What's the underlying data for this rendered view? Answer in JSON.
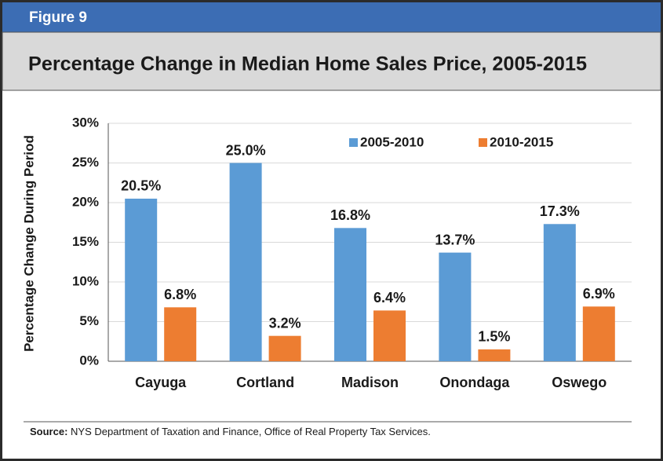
{
  "figure_label": "Figure 9",
  "chart_data": {
    "type": "bar",
    "title": "Percentage Change in Median Home Sales Price, 2005-2015",
    "y_label": "Percentage Change During Period",
    "categories": [
      "Cayuga",
      "Cortland",
      "Madison",
      "Onondaga",
      "Oswego"
    ],
    "series": [
      {
        "name": "2005-2010",
        "color": "#5b9bd5",
        "values": [
          20.5,
          25.0,
          16.8,
          13.7,
          17.3
        ],
        "value_labels": [
          "20.5%",
          "25.0%",
          "16.8%",
          "13.7%",
          "17.3%"
        ]
      },
      {
        "name": "2010-2015",
        "color": "#ed7d31",
        "values": [
          6.8,
          3.2,
          6.4,
          1.5,
          6.9
        ],
        "value_labels": [
          "6.8%",
          "3.2%",
          "6.4%",
          "1.5%",
          "6.9%"
        ]
      }
    ],
    "ylim": [
      0,
      30
    ],
    "yticks": [
      {
        "value": 0,
        "label": "0%"
      },
      {
        "value": 5,
        "label": "5%"
      },
      {
        "value": 10,
        "label": "10%"
      },
      {
        "value": 15,
        "label": "15%"
      },
      {
        "value": 20,
        "label": "20%"
      },
      {
        "value": 25,
        "label": "25%"
      },
      {
        "value": 30,
        "label": "30%"
      }
    ],
    "grid": true,
    "legend": "top"
  },
  "source": {
    "label": "Source:",
    "text": "NYS Department of Taxation and Finance, Office of Real Property Tax Services."
  }
}
